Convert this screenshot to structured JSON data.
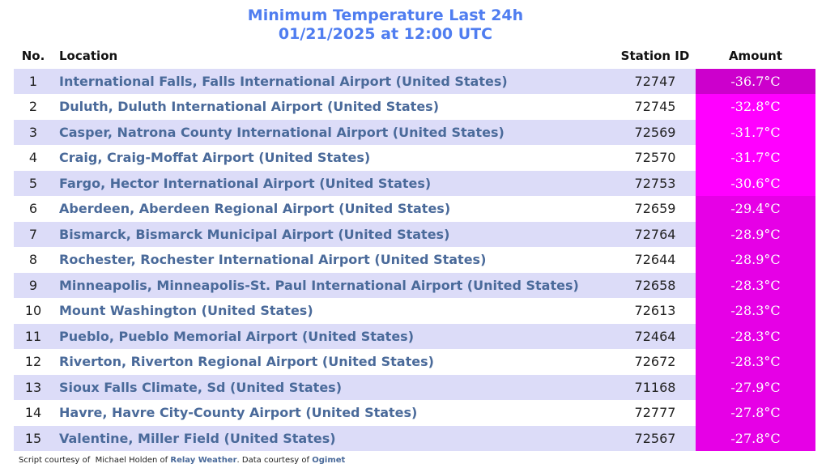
{
  "header": {
    "title": "Minimum Temperature Last 24h",
    "subtitle": "01/21/2025 at 12:00 UTC"
  },
  "table": {
    "columns": [
      "No.",
      "Location",
      "Station ID",
      "Amount"
    ],
    "rows": [
      {
        "no": "1",
        "location": "International Falls, Falls International Airport (United States)",
        "station_id": "72747",
        "amount": "-36.7°C",
        "color": "#cc00cc"
      },
      {
        "no": "2",
        "location": "Duluth, Duluth International Airport (United States)",
        "station_id": "72745",
        "amount": "-32.8°C",
        "color": "#ff00ff"
      },
      {
        "no": "3",
        "location": "Casper, Natrona County International Airport (United States)",
        "station_id": "72569",
        "amount": "-31.7°C",
        "color": "#ff00ff"
      },
      {
        "no": "4",
        "location": "Craig, Craig-Moffat Airport (United States)",
        "station_id": "72570",
        "amount": "-31.7°C",
        "color": "#ff00ff"
      },
      {
        "no": "5",
        "location": "Fargo, Hector International Airport (United States)",
        "station_id": "72753",
        "amount": "-30.6°C",
        "color": "#ff00ff"
      },
      {
        "no": "6",
        "location": "Aberdeen, Aberdeen Regional Airport (United States)",
        "station_id": "72659",
        "amount": "-29.4°C",
        "color": "#e600e6"
      },
      {
        "no": "7",
        "location": "Bismarck, Bismarck Municipal Airport (United States)",
        "station_id": "72764",
        "amount": "-28.9°C",
        "color": "#e600e6"
      },
      {
        "no": "8",
        "location": "Rochester, Rochester International Airport (United States)",
        "station_id": "72644",
        "amount": "-28.9°C",
        "color": "#e600e6"
      },
      {
        "no": "9",
        "location": "Minneapolis, Minneapolis-St. Paul International Airport (United States)",
        "station_id": "72658",
        "amount": "-28.3°C",
        "color": "#e600e6"
      },
      {
        "no": "10",
        "location": "Mount Washington (United States)",
        "station_id": "72613",
        "amount": "-28.3°C",
        "color": "#e600e6"
      },
      {
        "no": "11",
        "location": "Pueblo, Pueblo Memorial Airport (United States)",
        "station_id": "72464",
        "amount": "-28.3°C",
        "color": "#e600e6"
      },
      {
        "no": "12",
        "location": "Riverton, Riverton Regional Airport (United States)",
        "station_id": "72672",
        "amount": "-28.3°C",
        "color": "#e600e6"
      },
      {
        "no": "13",
        "location": "Sioux Falls Climate, Sd (United States)",
        "station_id": "71168",
        "amount": "-27.9°C",
        "color": "#e600e6"
      },
      {
        "no": "14",
        "location": "Havre, Havre City-County Airport (United States)",
        "station_id": "72777",
        "amount": "-27.8°C",
        "color": "#e600e6"
      },
      {
        "no": "15",
        "location": "Valentine, Miller Field (United States)",
        "station_id": "72567",
        "amount": "-27.8°C",
        "color": "#e600e6"
      }
    ]
  },
  "footer": {
    "prefix": "Script courtesy of  Michael Holden of",
    "link1": "Relay Weather",
    "middle": ". Data courtesy of",
    "link2": "Ogimet"
  }
}
